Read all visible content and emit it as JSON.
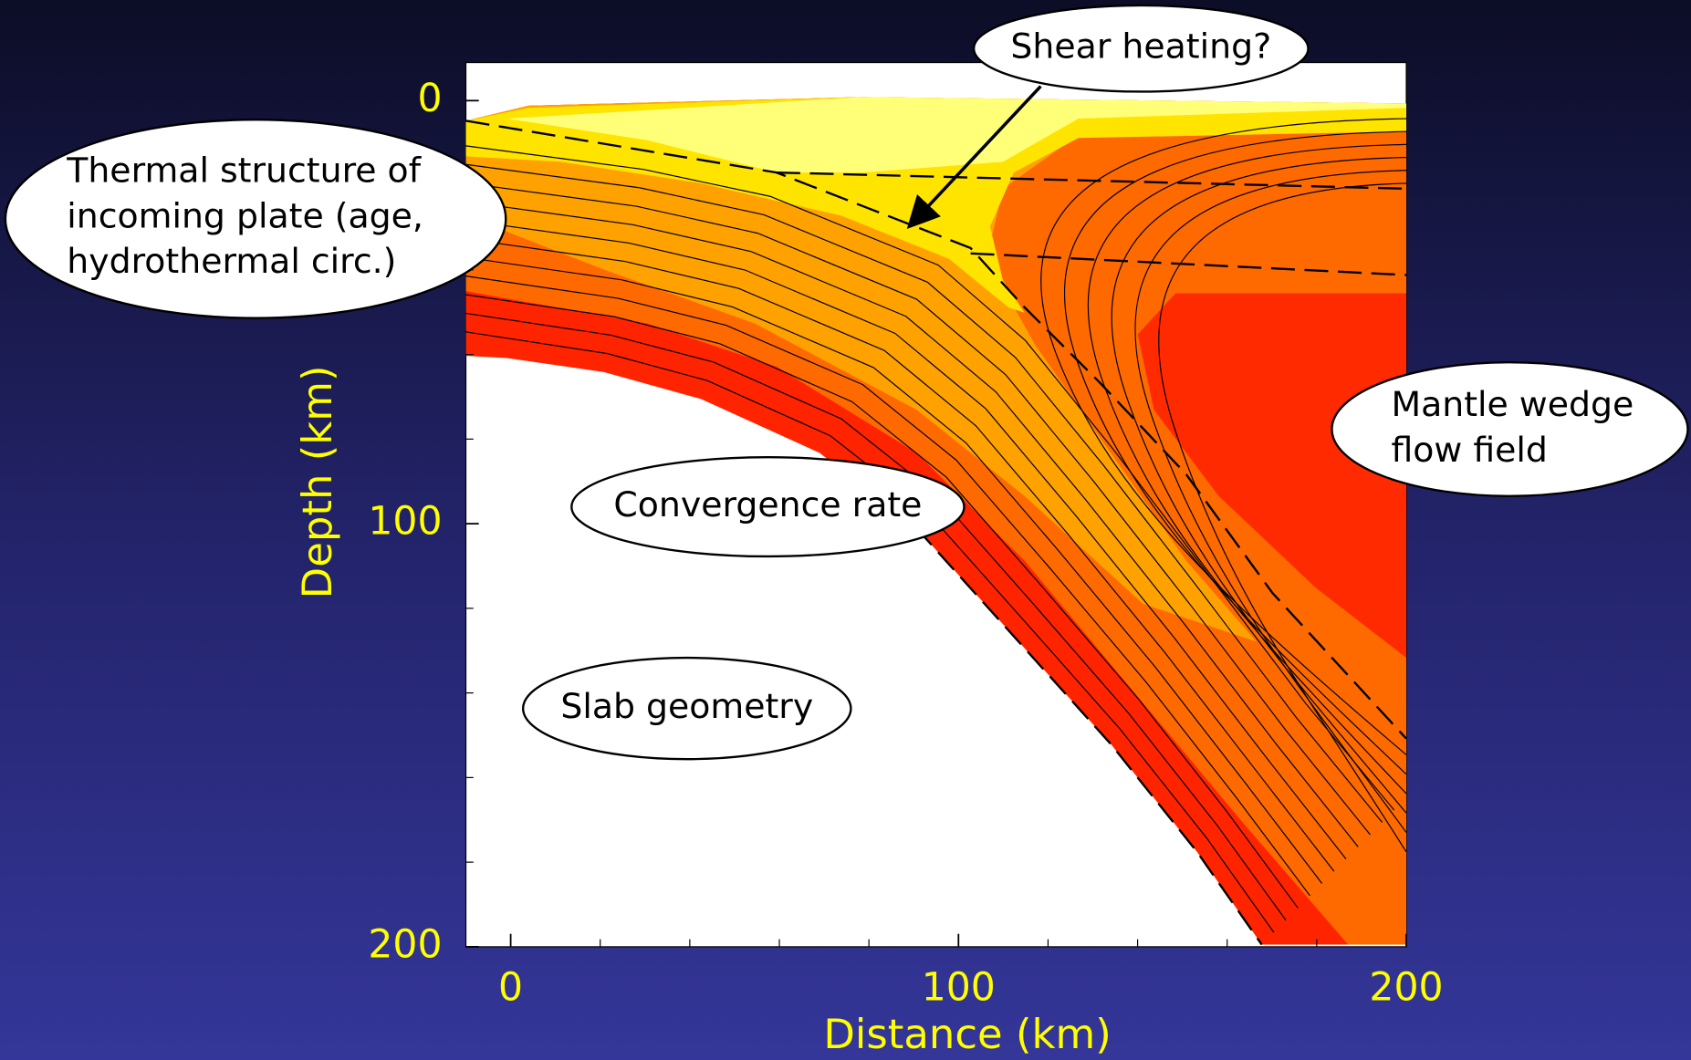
{
  "chart_data": {
    "type": "contour",
    "x_label": "Distance (km)",
    "y_label": "Depth (km)",
    "xlim": [
      -10,
      200
    ],
    "ylim": [
      -9,
      200
    ],
    "y_inverted": true,
    "xticks": [
      0,
      100,
      200
    ],
    "yticks": [
      0,
      100,
      200
    ],
    "x_minor_ticks": [
      20,
      40,
      60,
      80,
      120,
      140,
      160,
      180
    ],
    "y_minor_ticks": [
      20,
      40,
      60,
      80,
      120,
      140,
      160,
      180
    ],
    "annotations": [
      {
        "lines": [
          "Shear heating?"
        ]
      },
      {
        "lines": [
          "Thermal structure of",
          "incoming plate (age,",
          "hydrothermal circ.)"
        ]
      },
      {
        "lines": [
          "Mantle wedge",
          "flow field"
        ]
      },
      {
        "lines": [
          "Convergence rate"
        ]
      },
      {
        "lines": [
          "Slab geometry"
        ]
      }
    ]
  }
}
